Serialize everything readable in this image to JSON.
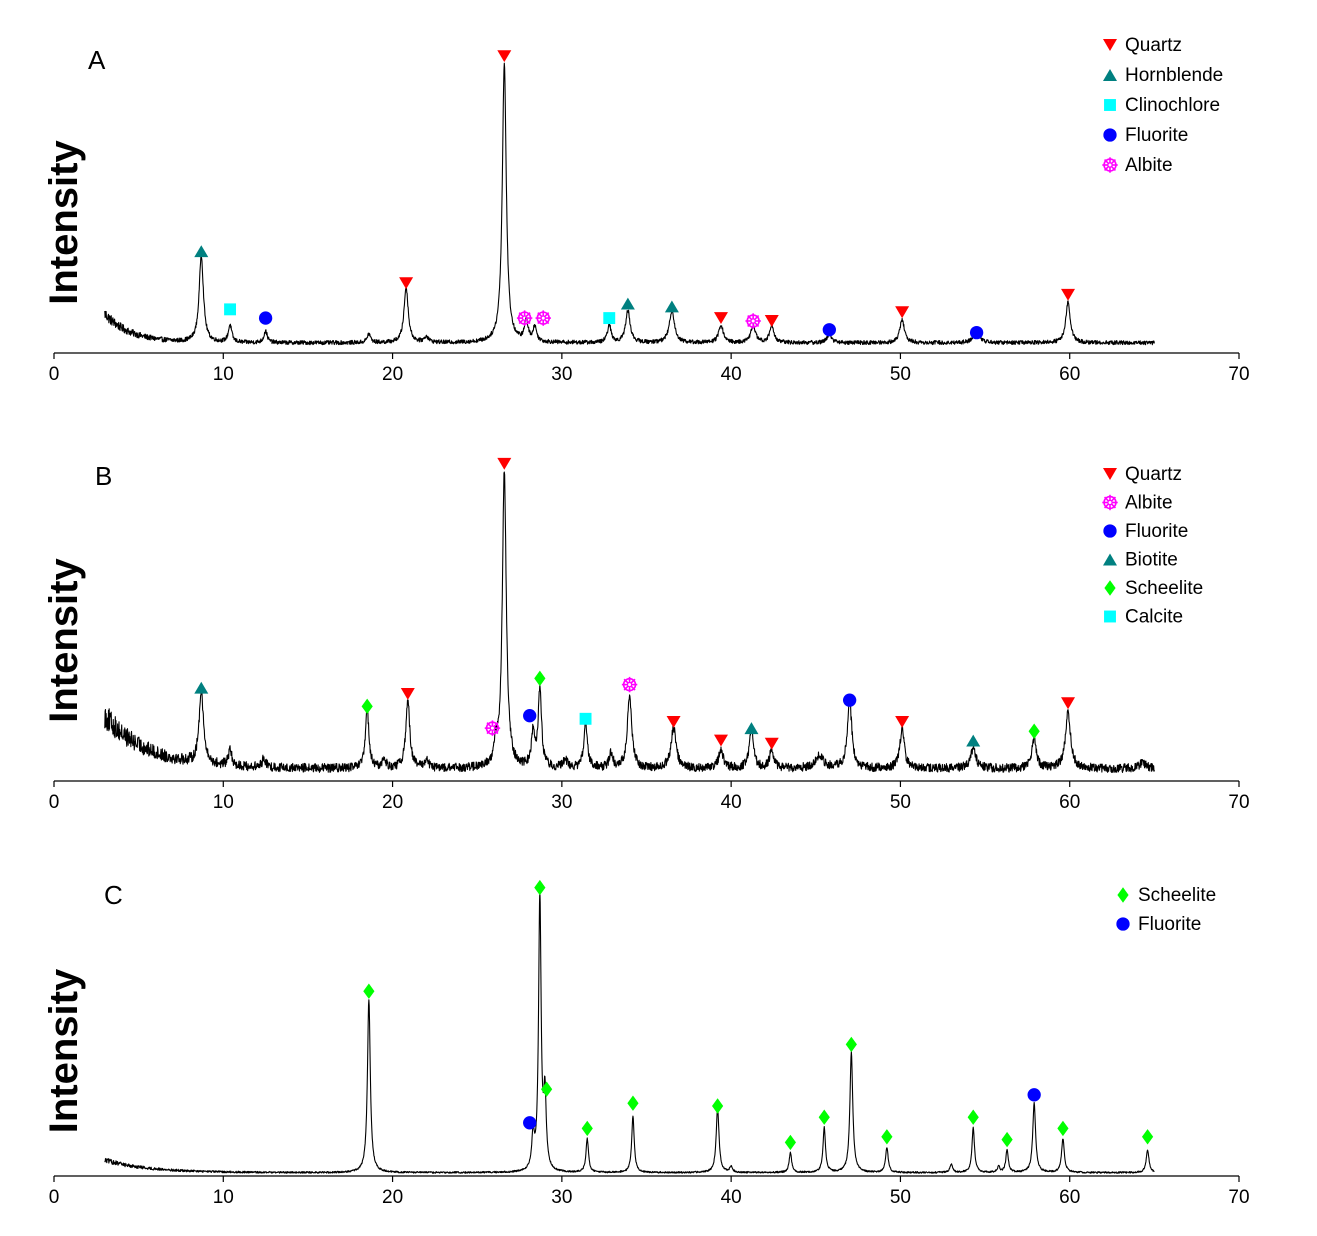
{
  "chart_data": [
    {
      "type": "line",
      "panel_label": "A",
      "ylabel": "Intensity",
      "xlabel": "",
      "xlim": [
        0,
        70
      ],
      "x_ticks": [
        0,
        10,
        20,
        30,
        40,
        50,
        60,
        70
      ],
      "x_range": [
        3,
        65
      ],
      "background": 0.035,
      "background_decay": 0.1,
      "background_tau": 1.5,
      "noise": 0.007,
      "peaks": [
        {
          "x": 8.7,
          "h": 0.3,
          "w": 0.15
        },
        {
          "x": 10.4,
          "h": 0.06,
          "w": 0.12
        },
        {
          "x": 12.5,
          "h": 0.04,
          "w": 0.12
        },
        {
          "x": 18.6,
          "h": 0.03,
          "w": 0.12
        },
        {
          "x": 20.8,
          "h": 0.19,
          "w": 0.15
        },
        {
          "x": 22.0,
          "h": 0.02,
          "w": 0.15
        },
        {
          "x": 26.6,
          "h": 0.96,
          "w": 0.14
        },
        {
          "x": 27.9,
          "h": 0.07,
          "w": 0.13
        },
        {
          "x": 28.4,
          "h": 0.05,
          "w": 0.13
        },
        {
          "x": 32.8,
          "h": 0.06,
          "w": 0.13
        },
        {
          "x": 33.9,
          "h": 0.11,
          "w": 0.16
        },
        {
          "x": 36.5,
          "h": 0.11,
          "w": 0.18
        },
        {
          "x": 39.4,
          "h": 0.06,
          "w": 0.16
        },
        {
          "x": 41.3,
          "h": 0.06,
          "w": 0.16
        },
        {
          "x": 42.4,
          "h": 0.06,
          "w": 0.15
        },
        {
          "x": 45.8,
          "h": 0.03,
          "w": 0.16
        },
        {
          "x": 50.1,
          "h": 0.08,
          "w": 0.16
        },
        {
          "x": 54.5,
          "h": 0.03,
          "w": 0.25
        },
        {
          "x": 59.9,
          "h": 0.14,
          "w": 0.16
        }
      ],
      "markers": [
        {
          "phase": "Quartz",
          "x": 26.6,
          "y": 1.02
        },
        {
          "phase": "Quartz",
          "x": 20.8,
          "y": 0.24
        },
        {
          "phase": "Quartz",
          "x": 39.4,
          "y": 0.12
        },
        {
          "phase": "Quartz",
          "x": 42.4,
          "y": 0.11
        },
        {
          "phase": "Quartz",
          "x": 50.1,
          "y": 0.14
        },
        {
          "phase": "Quartz",
          "x": 59.9,
          "y": 0.2
        },
        {
          "phase": "Hornblende",
          "x": 8.7,
          "y": 0.35
        },
        {
          "phase": "Hornblende",
          "x": 33.9,
          "y": 0.17
        },
        {
          "phase": "Hornblende",
          "x": 36.5,
          "y": 0.16
        },
        {
          "phase": "Clinochlore",
          "x": 10.4,
          "y": 0.15
        },
        {
          "phase": "Clinochlore",
          "x": 32.8,
          "y": 0.12
        },
        {
          "phase": "Fluorite",
          "x": 12.5,
          "y": 0.12
        },
        {
          "phase": "Fluorite",
          "x": 45.8,
          "y": 0.08
        },
        {
          "phase": "Fluorite",
          "x": 54.5,
          "y": 0.07
        },
        {
          "phase": "Albite",
          "x": 27.8,
          "y": 0.12
        },
        {
          "phase": "Albite",
          "x": 28.9,
          "y": 0.12
        },
        {
          "phase": "Albite",
          "x": 41.3,
          "y": 0.11
        }
      ],
      "legend": [
        "Quartz",
        "Hornblende",
        "Clinochlore",
        "Fluorite",
        "Albite"
      ]
    },
    {
      "type": "line",
      "panel_label": "B",
      "ylabel": "Intensity",
      "xlabel": "",
      "xlim": [
        0,
        70
      ],
      "x_ticks": [
        0,
        10,
        20,
        30,
        40,
        50,
        60,
        70
      ],
      "x_range": [
        3,
        65
      ],
      "background": 0.04,
      "background_decay": 0.17,
      "background_tau": 2.5,
      "noise": 0.014,
      "peaks": [
        {
          "x": 8.7,
          "h": 0.24,
          "w": 0.15
        },
        {
          "x": 10.4,
          "h": 0.05,
          "w": 0.12
        },
        {
          "x": 12.4,
          "h": 0.03,
          "w": 0.12
        },
        {
          "x": 18.5,
          "h": 0.19,
          "w": 0.12
        },
        {
          "x": 19.5,
          "h": 0.03,
          "w": 0.12
        },
        {
          "x": 20.9,
          "h": 0.22,
          "w": 0.14
        },
        {
          "x": 22.0,
          "h": 0.03,
          "w": 0.12
        },
        {
          "x": 26.1,
          "h": 0.06,
          "w": 0.12
        },
        {
          "x": 26.6,
          "h": 0.95,
          "w": 0.14
        },
        {
          "x": 28.3,
          "h": 0.11,
          "w": 0.12
        },
        {
          "x": 28.7,
          "h": 0.25,
          "w": 0.12
        },
        {
          "x": 30.2,
          "h": 0.03,
          "w": 0.12
        },
        {
          "x": 31.4,
          "h": 0.15,
          "w": 0.12
        },
        {
          "x": 32.9,
          "h": 0.05,
          "w": 0.12
        },
        {
          "x": 34.0,
          "h": 0.24,
          "w": 0.15
        },
        {
          "x": 36.6,
          "h": 0.13,
          "w": 0.18
        },
        {
          "x": 39.4,
          "h": 0.06,
          "w": 0.16
        },
        {
          "x": 41.2,
          "h": 0.12,
          "w": 0.15
        },
        {
          "x": 42.4,
          "h": 0.06,
          "w": 0.15
        },
        {
          "x": 45.2,
          "h": 0.04,
          "w": 0.3
        },
        {
          "x": 47.0,
          "h": 0.21,
          "w": 0.16
        },
        {
          "x": 50.1,
          "h": 0.13,
          "w": 0.15
        },
        {
          "x": 54.3,
          "h": 0.06,
          "w": 0.2
        },
        {
          "x": 57.9,
          "h": 0.1,
          "w": 0.15
        },
        {
          "x": 59.9,
          "h": 0.18,
          "w": 0.18
        },
        {
          "x": 64.3,
          "h": 0.02,
          "w": 0.2
        }
      ],
      "markers": [
        {
          "phase": "Quartz",
          "x": 26.6,
          "y": 1.02
        },
        {
          "phase": "Quartz",
          "x": 20.9,
          "y": 0.28
        },
        {
          "phase": "Quartz",
          "x": 36.6,
          "y": 0.19
        },
        {
          "phase": "Quartz",
          "x": 39.4,
          "y": 0.13
        },
        {
          "phase": "Quartz",
          "x": 42.4,
          "y": 0.12
        },
        {
          "phase": "Quartz",
          "x": 50.1,
          "y": 0.19
        },
        {
          "phase": "Quartz",
          "x": 59.9,
          "y": 0.25
        },
        {
          "phase": "Albite",
          "x": 25.9,
          "y": 0.17
        },
        {
          "phase": "Albite",
          "x": 34.0,
          "y": 0.31
        },
        {
          "phase": "Fluorite",
          "x": 28.1,
          "y": 0.21
        },
        {
          "phase": "Fluorite",
          "x": 47.0,
          "y": 0.26
        },
        {
          "phase": "Biotite",
          "x": 8.7,
          "y": 0.3
        },
        {
          "phase": "Biotite",
          "x": 41.2,
          "y": 0.17
        },
        {
          "phase": "Biotite",
          "x": 54.3,
          "y": 0.13
        },
        {
          "phase": "Scheelite",
          "x": 18.5,
          "y": 0.24
        },
        {
          "phase": "Scheelite",
          "x": 28.7,
          "y": 0.33
        },
        {
          "phase": "Scheelite",
          "x": 57.9,
          "y": 0.16
        },
        {
          "phase": "Calcite",
          "x": 31.4,
          "y": 0.2
        }
      ],
      "legend": [
        "Quartz",
        "Albite",
        "Fluorite",
        "Biotite",
        "Scheelite",
        "Calcite"
      ]
    },
    {
      "type": "line",
      "panel_label": "C",
      "ylabel": "Intensity",
      "xlabel": "",
      "xlim": [
        0,
        70
      ],
      "x_ticks": [
        0,
        10,
        20,
        30,
        40,
        50,
        60,
        70
      ],
      "x_range": [
        3,
        65
      ],
      "background": 0.012,
      "background_decay": 0.045,
      "background_tau": 2.5,
      "noise": 0.003,
      "peaks": [
        {
          "x": 18.6,
          "h": 0.62,
          "w": 0.1
        },
        {
          "x": 28.3,
          "h": 0.12,
          "w": 0.09
        },
        {
          "x": 28.7,
          "h": 0.98,
          "w": 0.09
        },
        {
          "x": 29.0,
          "h": 0.26,
          "w": 0.09
        },
        {
          "x": 31.5,
          "h": 0.12,
          "w": 0.09
        },
        {
          "x": 34.2,
          "h": 0.2,
          "w": 0.09
        },
        {
          "x": 39.2,
          "h": 0.23,
          "w": 0.1
        },
        {
          "x": 40.0,
          "h": 0.02,
          "w": 0.1
        },
        {
          "x": 43.5,
          "h": 0.07,
          "w": 0.09
        },
        {
          "x": 45.5,
          "h": 0.16,
          "w": 0.09
        },
        {
          "x": 47.1,
          "h": 0.43,
          "w": 0.1
        },
        {
          "x": 49.2,
          "h": 0.09,
          "w": 0.09
        },
        {
          "x": 53.0,
          "h": 0.03,
          "w": 0.09
        },
        {
          "x": 54.3,
          "h": 0.16,
          "w": 0.09
        },
        {
          "x": 55.8,
          "h": 0.02,
          "w": 0.09
        },
        {
          "x": 56.3,
          "h": 0.08,
          "w": 0.09
        },
        {
          "x": 57.9,
          "h": 0.25,
          "w": 0.1
        },
        {
          "x": 59.6,
          "h": 0.12,
          "w": 0.1
        },
        {
          "x": 64.6,
          "h": 0.08,
          "w": 0.1
        }
      ],
      "markers": [
        {
          "phase": "Scheelite",
          "x": 18.6,
          "y": 0.66
        },
        {
          "phase": "Scheelite",
          "x": 28.7,
          "y": 1.03
        },
        {
          "phase": "Scheelite",
          "x": 29.1,
          "y": 0.31
        },
        {
          "phase": "Scheelite",
          "x": 31.5,
          "y": 0.17
        },
        {
          "phase": "Scheelite",
          "x": 34.2,
          "y": 0.26
        },
        {
          "phase": "Scheelite",
          "x": 39.2,
          "y": 0.25
        },
        {
          "phase": "Scheelite",
          "x": 43.5,
          "y": 0.12
        },
        {
          "phase": "Scheelite",
          "x": 45.5,
          "y": 0.21
        },
        {
          "phase": "Scheelite",
          "x": 47.1,
          "y": 0.47
        },
        {
          "phase": "Scheelite",
          "x": 49.2,
          "y": 0.14
        },
        {
          "phase": "Scheelite",
          "x": 54.3,
          "y": 0.21
        },
        {
          "phase": "Scheelite",
          "x": 56.3,
          "y": 0.13
        },
        {
          "phase": "Scheelite",
          "x": 59.6,
          "y": 0.17
        },
        {
          "phase": "Scheelite",
          "x": 64.6,
          "y": 0.14
        },
        {
          "phase": "Fluorite",
          "x": 28.1,
          "y": 0.19
        },
        {
          "phase": "Fluorite",
          "x": 57.9,
          "y": 0.29
        }
      ],
      "legend": [
        "Scheelite",
        "Fluorite"
      ]
    }
  ],
  "phase_styles": {
    "Quartz": {
      "symbol": "triangle-down",
      "color": "#ff0000"
    },
    "Hornblende": {
      "symbol": "triangle-up",
      "color": "#008080"
    },
    "Biotite": {
      "symbol": "triangle-up",
      "color": "#008080"
    },
    "Clinochlore": {
      "symbol": "square",
      "color": "#00ffff"
    },
    "Calcite": {
      "symbol": "square",
      "color": "#00ffff"
    },
    "Fluorite": {
      "symbol": "circle",
      "color": "#0000ff"
    },
    "Albite": {
      "symbol": "star",
      "color": "#ff00ff"
    },
    "Scheelite": {
      "symbol": "diamond",
      "color": "#00ff00"
    }
  }
}
